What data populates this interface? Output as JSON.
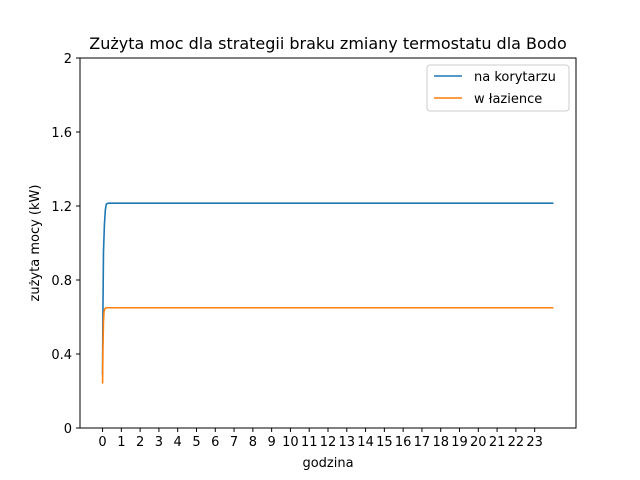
{
  "chart_data": {
    "type": "line",
    "title": "Zużyta moc dla strategii braku zmiany termostatu dla Bodo",
    "xlabel": "godzina",
    "ylabel": "zużyta mocy (kW)",
    "xlim": [
      -1.2,
      25.2
    ],
    "ylim": [
      0,
      2
    ],
    "xticks": [
      0,
      1,
      2,
      3,
      4,
      5,
      6,
      7,
      8,
      9,
      10,
      11,
      12,
      13,
      14,
      15,
      16,
      17,
      18,
      19,
      20,
      21,
      22,
      23
    ],
    "xtick_labels": [
      "0",
      "1",
      "2",
      "3",
      "4",
      "5",
      "6",
      "7",
      "8",
      "9",
      "10",
      "11",
      "12",
      "13",
      "14",
      "15",
      "16",
      "17",
      "18",
      "19",
      "20",
      "21",
      "22",
      "23"
    ],
    "yticks": [
      0,
      0.4,
      0.8,
      1.2,
      1.6,
      2
    ],
    "ytick_labels": [
      "0",
      "0.4",
      "0.8",
      "1.2",
      "1.6",
      "2"
    ],
    "grid": false,
    "legend_position": "top-right",
    "series": [
      {
        "name": "na korytarzu",
        "color": "#1f77b4",
        "x": [
          0,
          0.02,
          0.05,
          0.1,
          0.15,
          0.2,
          0.3,
          1,
          5,
          10,
          15,
          20,
          24
        ],
        "y": [
          0.29,
          0.62,
          0.95,
          1.1,
          1.18,
          1.21,
          1.215,
          1.215,
          1.215,
          1.215,
          1.215,
          1.215,
          1.215
        ]
      },
      {
        "name": "w łazience",
        "color": "#ff7f0e",
        "x": [
          0,
          0.02,
          0.05,
          0.08,
          0.12,
          0.2,
          0.3,
          1,
          5,
          10,
          15,
          20,
          24
        ],
        "y": [
          0.24,
          0.42,
          0.58,
          0.63,
          0.645,
          0.65,
          0.65,
          0.65,
          0.65,
          0.65,
          0.65,
          0.65,
          0.65
        ]
      }
    ]
  }
}
